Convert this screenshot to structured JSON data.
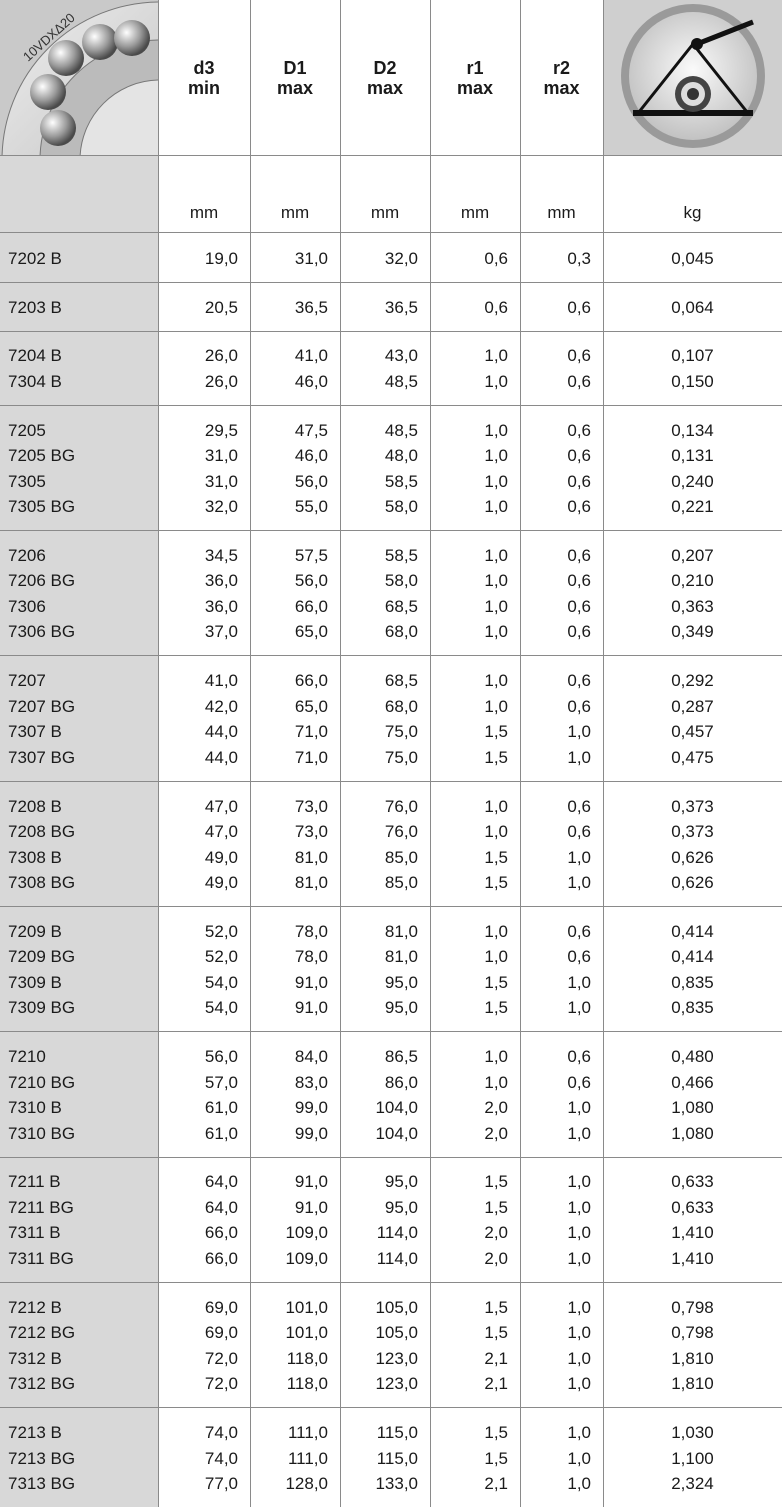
{
  "header": {
    "image_text": "10VDXΔ20",
    "columns": [
      {
        "name": "d3",
        "qualifier": "min",
        "unit": "mm"
      },
      {
        "name": "D1",
        "qualifier": "max",
        "unit": "mm"
      },
      {
        "name": "D2",
        "qualifier": "max",
        "unit": "mm"
      },
      {
        "name": "r1",
        "qualifier": "max",
        "unit": "mm"
      },
      {
        "name": "r2",
        "qualifier": "max",
        "unit": "mm"
      }
    ],
    "weight_unit": "kg"
  },
  "table": {
    "groups": [
      [
        [
          "7202 B",
          "19,0",
          "31,0",
          "32,0",
          "0,6",
          "0,3",
          "0,045"
        ]
      ],
      [
        [
          "7203 B",
          "20,5",
          "36,5",
          "36,5",
          "0,6",
          "0,6",
          "0,064"
        ]
      ],
      [
        [
          "7204 B",
          "26,0",
          "41,0",
          "43,0",
          "1,0",
          "0,6",
          "0,107"
        ],
        [
          "7304 B",
          "26,0",
          "46,0",
          "48,5",
          "1,0",
          "0,6",
          "0,150"
        ]
      ],
      [
        [
          "7205",
          "29,5",
          "47,5",
          "48,5",
          "1,0",
          "0,6",
          "0,134"
        ],
        [
          "7205 BG",
          "31,0",
          "46,0",
          "48,0",
          "1,0",
          "0,6",
          "0,131"
        ],
        [
          "7305",
          "31,0",
          "56,0",
          "58,5",
          "1,0",
          "0,6",
          "0,240"
        ],
        [
          "7305 BG",
          "32,0",
          "55,0",
          "58,0",
          "1,0",
          "0,6",
          "0,221"
        ]
      ],
      [
        [
          "7206",
          "34,5",
          "57,5",
          "58,5",
          "1,0",
          "0,6",
          "0,207"
        ],
        [
          "7206 BG",
          "36,0",
          "56,0",
          "58,0",
          "1,0",
          "0,6",
          "0,210"
        ],
        [
          "7306",
          "36,0",
          "66,0",
          "68,5",
          "1,0",
          "0,6",
          "0,363"
        ],
        [
          "7306 BG",
          "37,0",
          "65,0",
          "68,0",
          "1,0",
          "0,6",
          "0,349"
        ]
      ],
      [
        [
          "7207",
          "41,0",
          "66,0",
          "68,5",
          "1,0",
          "0,6",
          "0,292"
        ],
        [
          "7207 BG",
          "42,0",
          "65,0",
          "68,0",
          "1,0",
          "0,6",
          "0,287"
        ],
        [
          "7307 B",
          "44,0",
          "71,0",
          "75,0",
          "1,5",
          "1,0",
          "0,457"
        ],
        [
          "7307 BG",
          "44,0",
          "71,0",
          "75,0",
          "1,5",
          "1,0",
          "0,475"
        ]
      ],
      [
        [
          "7208 B",
          "47,0",
          "73,0",
          "76,0",
          "1,0",
          "0,6",
          "0,373"
        ],
        [
          "7208 BG",
          "47,0",
          "73,0",
          "76,0",
          "1,0",
          "0,6",
          "0,373"
        ],
        [
          "7308 B",
          "49,0",
          "81,0",
          "85,0",
          "1,5",
          "1,0",
          "0,626"
        ],
        [
          "7308 BG",
          "49,0",
          "81,0",
          "85,0",
          "1,5",
          "1,0",
          "0,626"
        ]
      ],
      [
        [
          "7209 B",
          "52,0",
          "78,0",
          "81,0",
          "1,0",
          "0,6",
          "0,414"
        ],
        [
          "7209 BG",
          "52,0",
          "78,0",
          "81,0",
          "1,0",
          "0,6",
          "0,414"
        ],
        [
          "7309 B",
          "54,0",
          "91,0",
          "95,0",
          "1,5",
          "1,0",
          "0,835"
        ],
        [
          "7309 BG",
          "54,0",
          "91,0",
          "95,0",
          "1,5",
          "1,0",
          "0,835"
        ]
      ],
      [
        [
          "7210",
          "56,0",
          "84,0",
          "86,5",
          "1,0",
          "0,6",
          "0,480"
        ],
        [
          "7210 BG",
          "57,0",
          "83,0",
          "86,0",
          "1,0",
          "0,6",
          "0,466"
        ],
        [
          "7310 B",
          "61,0",
          "99,0",
          "104,0",
          "2,0",
          "1,0",
          "1,080"
        ],
        [
          "7310 BG",
          "61,0",
          "99,0",
          "104,0",
          "2,0",
          "1,0",
          "1,080"
        ]
      ],
      [
        [
          "7211 B",
          "64,0",
          "91,0",
          "95,0",
          "1,5",
          "1,0",
          "0,633"
        ],
        [
          "7211 BG",
          "64,0",
          "91,0",
          "95,0",
          "1,5",
          "1,0",
          "0,633"
        ],
        [
          "7311 B",
          "66,0",
          "109,0",
          "114,0",
          "2,0",
          "1,0",
          "1,410"
        ],
        [
          "7311 BG",
          "66,0",
          "109,0",
          "114,0",
          "2,0",
          "1,0",
          "1,410"
        ]
      ],
      [
        [
          "7212 B",
          "69,0",
          "101,0",
          "105,0",
          "1,5",
          "1,0",
          "0,798"
        ],
        [
          "7212 BG",
          "69,0",
          "101,0",
          "105,0",
          "1,5",
          "1,0",
          "0,798"
        ],
        [
          "7312 B",
          "72,0",
          "118,0",
          "123,0",
          "2,1",
          "1,0",
          "1,810"
        ],
        [
          "7312 BG",
          "72,0",
          "118,0",
          "123,0",
          "2,1",
          "1,0",
          "1,810"
        ]
      ],
      [
        [
          "7213 B",
          "74,0",
          "111,0",
          "115,0",
          "1,5",
          "1,0",
          "1,030"
        ],
        [
          "7213 BG",
          "74,0",
          "111,0",
          "115,0",
          "1,5",
          "1,0",
          "1,100"
        ],
        [
          "7313 BG",
          "77,0",
          "128,0",
          "133,0",
          "2,1",
          "1,0",
          "2,324"
        ]
      ]
    ]
  }
}
